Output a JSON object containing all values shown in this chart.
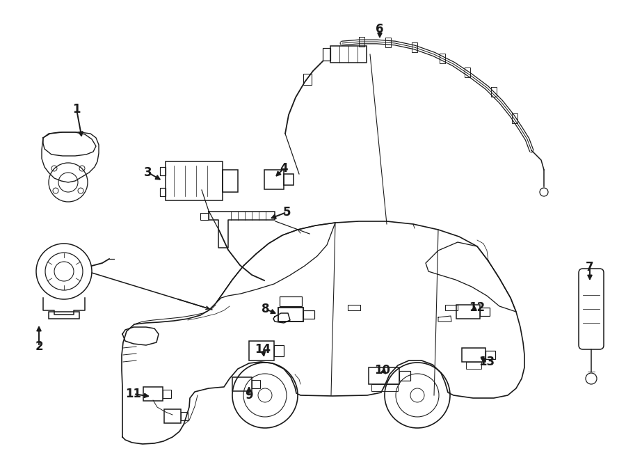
{
  "bg": "#ffffff",
  "lc": "#1a1a1a",
  "lw": 1.1,
  "fig_w": 9.0,
  "fig_h": 6.61,
  "dpi": 100
}
